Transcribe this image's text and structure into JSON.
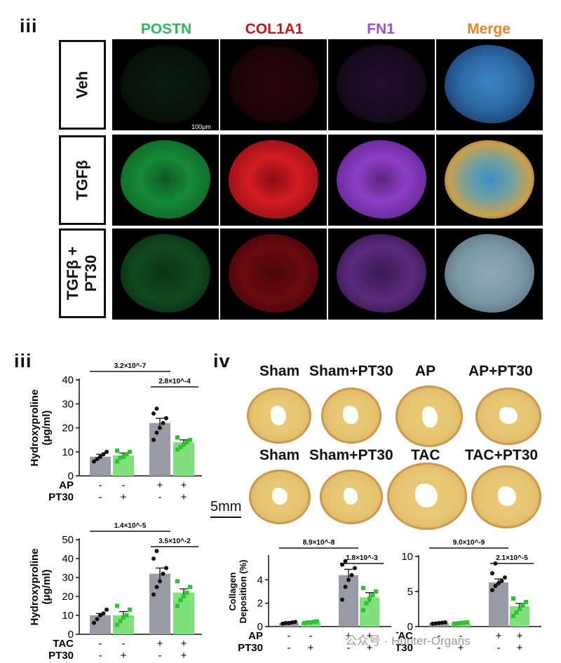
{
  "panel_top_label": "iii",
  "channels": [
    "POSTN",
    "COL1A1",
    "FN1",
    "Merge"
  ],
  "channel_colors": [
    "#2fb85a",
    "#c0171e",
    "#9b4fd3",
    "#e8822f"
  ],
  "rows": [
    "Veh",
    "TGFβ",
    "TGFβ +\nPT30"
  ],
  "micro_scalebar": "100μm",
  "panel_iii_label": "iii",
  "panel_iv_label": "iv",
  "heart_row1": [
    "Sham",
    "Sham+PT30",
    "AP",
    "AP+PT30"
  ],
  "heart_row2": [
    "Sham",
    "Sham+PT30",
    "TAC",
    "TAC+PT30"
  ],
  "heart_scalebar": "5mm",
  "watermark": "公众号 · Hunter-Organs",
  "chart_data": [
    {
      "type": "bar",
      "ylabel": "Hydroxyproline\n(μg/ml)",
      "ylim": [
        0,
        40
      ],
      "yticks": [
        0,
        10,
        20,
        30,
        40
      ],
      "factor1": {
        "name": "AP",
        "values": [
          "-",
          "-",
          "+",
          "+"
        ]
      },
      "factor2": {
        "name": "PT30",
        "values": [
          "-",
          "+",
          "-",
          "+"
        ]
      },
      "values": [
        8,
        8.5,
        22,
        14
      ],
      "errors": [
        1,
        1,
        2,
        1
      ],
      "points": [
        [
          6,
          7,
          8,
          9,
          10
        ],
        [
          6,
          7.5,
          8,
          9,
          10,
          10.5
        ],
        [
          15,
          18,
          20,
          22,
          24,
          26,
          28
        ],
        [
          11,
          12,
          13,
          14,
          15,
          16
        ]
      ],
      "bar_colors": [
        "#999aa6",
        "#7fe07c",
        "#999aa6",
        "#7fe07c"
      ],
      "annotations": [
        {
          "text": "3.2×10^-7",
          "from": 0,
          "to": 2
        },
        {
          "text": "2.8×10^-4",
          "from": 2,
          "to": 3
        }
      ]
    },
    {
      "type": "bar",
      "ylabel": "Hydroxyproline\n(μg/ml)",
      "ylim": [
        0,
        50
      ],
      "yticks": [
        0,
        10,
        20,
        30,
        40,
        50
      ],
      "factor1": {
        "name": "TAC",
        "values": [
          "-",
          "-",
          "+",
          "+"
        ]
      },
      "factor2": {
        "name": "PT30",
        "values": [
          "-",
          "+",
          "-",
          "+"
        ]
      },
      "values": [
        10,
        10,
        32,
        22
      ],
      "errors": [
        1,
        2,
        3,
        2
      ],
      "points": [
        [
          6,
          8,
          10,
          11,
          13
        ],
        [
          5,
          7,
          9,
          10,
          13,
          15
        ],
        [
          21,
          25,
          28,
          32,
          35,
          40,
          44
        ],
        [
          15,
          18,
          20,
          22,
          25,
          28
        ]
      ],
      "bar_colors": [
        "#999aa6",
        "#7fe07c",
        "#999aa6",
        "#7fe07c"
      ],
      "annotations": [
        {
          "text": "1.4×10^-5",
          "from": 0,
          "to": 2
        },
        {
          "text": "3.5×10^-2",
          "from": 2,
          "to": 3
        }
      ]
    },
    {
      "type": "bar",
      "ylabel": "Collagen\nDeposition (%)",
      "ylim": [
        0,
        6
      ],
      "yticks": [
        0,
        2,
        4
      ],
      "factor1": {
        "name": "AP",
        "values": [
          "-",
          "-",
          "+",
          "+"
        ]
      },
      "factor2": {
        "name": "PT30",
        "values": [
          "-",
          "+",
          "-",
          "+"
        ]
      },
      "values": [
        0.3,
        0.35,
        4.4,
        2.5
      ],
      "errors": [
        0.05,
        0.05,
        0.5,
        0.4
      ],
      "points": [
        [
          0.25,
          0.3,
          0.3,
          0.35,
          0.4
        ],
        [
          0.3,
          0.35,
          0.35,
          0.4,
          0.45
        ],
        [
          2.3,
          3.4,
          4.0,
          4.4,
          5.0,
          5.3,
          5.6
        ],
        [
          1.4,
          2.0,
          2.4,
          2.7,
          3.0,
          3.3
        ]
      ],
      "bar_colors": [
        "#999aa6",
        "#7fe07c",
        "#999aa6",
        "#7fe07c"
      ],
      "annotations": [
        {
          "text": "8.9×10^-8",
          "from": 0,
          "to": 2
        },
        {
          "text": "1.8×10^-3",
          "from": 2,
          "to": 3
        }
      ]
    },
    {
      "type": "bar",
      "ylabel": "",
      "ylim": [
        0,
        10
      ],
      "yticks": [
        0,
        5,
        10
      ],
      "factor1": {
        "name": "TAC",
        "values": [
          "-",
          "-",
          "+",
          "+"
        ]
      },
      "factor2": {
        "name": "PT30",
        "values": [
          "-",
          "+",
          "-",
          "+"
        ]
      },
      "values": [
        0.5,
        0.5,
        6.3,
        2.9
      ],
      "errors": [
        0.05,
        0.05,
        0.5,
        0.4
      ],
      "points": [
        [
          0.4,
          0.45,
          0.5,
          0.55,
          0.6
        ],
        [
          0.4,
          0.45,
          0.5,
          0.55,
          0.6
        ],
        [
          5.2,
          5.8,
          6.2,
          6.5,
          7.0,
          7.6,
          9.0
        ],
        [
          1.5,
          2.0,
          2.5,
          3.0,
          3.5,
          4.0
        ]
      ],
      "bar_colors": [
        "#999aa6",
        "#7fe07c",
        "#999aa6",
        "#7fe07c"
      ],
      "annotations": [
        {
          "text": "9.0×10^-9",
          "from": 0,
          "to": 2
        },
        {
          "text": "2.1×10^-5",
          "from": 2,
          "to": 3
        }
      ]
    }
  ]
}
